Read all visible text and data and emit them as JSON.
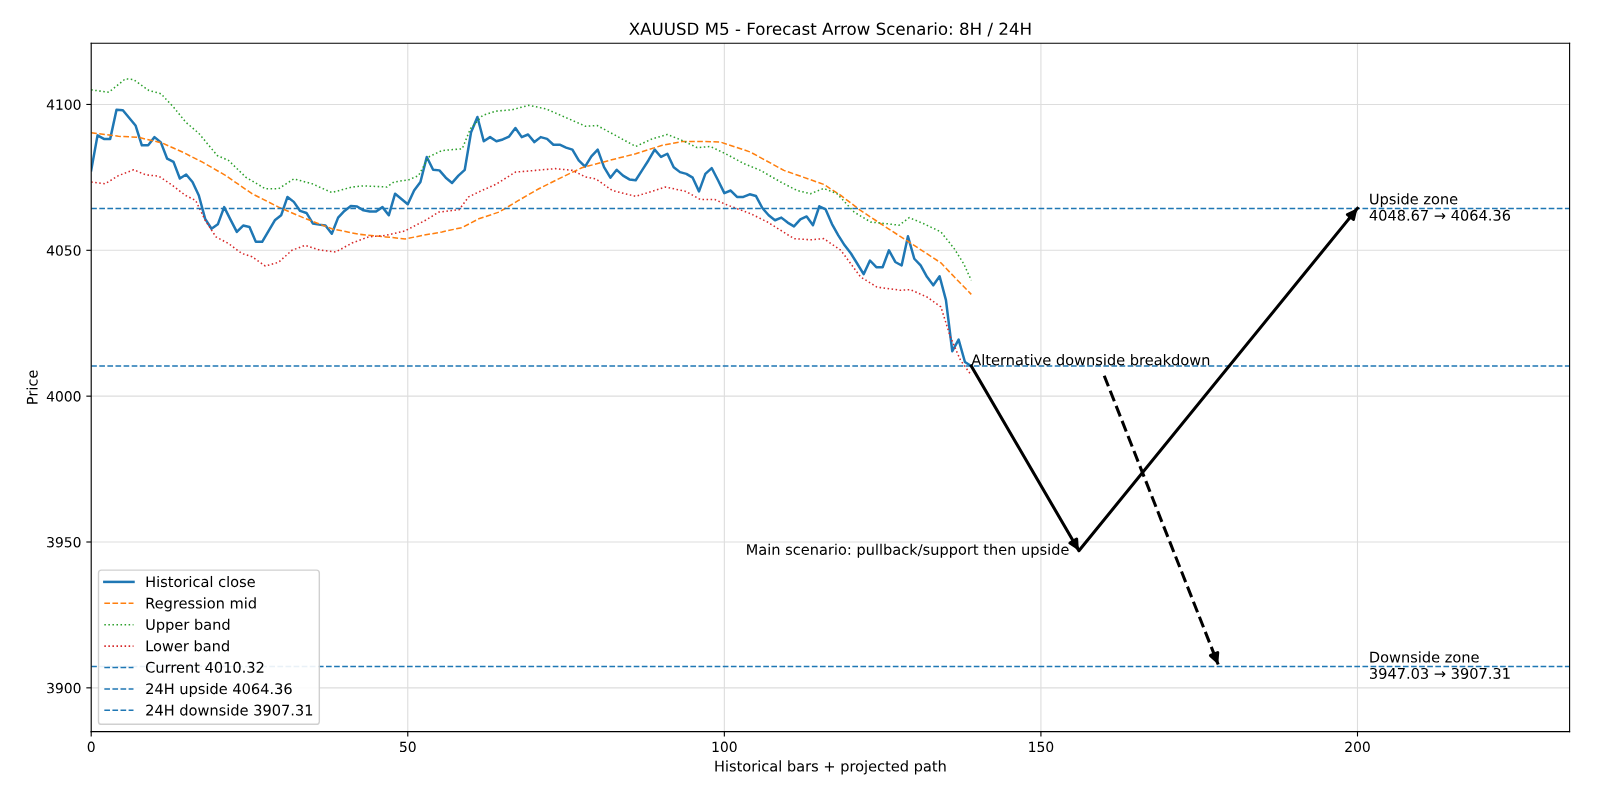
{
  "chart_data": {
    "type": "line",
    "title": "XAUUSD M5 - Forecast Arrow Scenario: 8H / 24H",
    "xlabel": "Historical bars + projected path",
    "ylabel": "Price",
    "xlim": [
      0,
      233.5
    ],
    "ylim": [
      3885,
      4121
    ],
    "xticks": [
      0,
      50,
      100,
      150,
      200
    ],
    "yticks": [
      3900,
      3950,
      4000,
      4050,
      4100
    ],
    "grid": true,
    "legend": "bottom left",
    "series": [
      {
        "name": "Historical close",
        "color": "#1f77b4",
        "line_style": "solid",
        "x": [
          0,
          1,
          2,
          3,
          4,
          5,
          7,
          8,
          9,
          10,
          11,
          12,
          13,
          14,
          15,
          16,
          17,
          18,
          19,
          20,
          21,
          22,
          23,
          24,
          25,
          26,
          27,
          29,
          30,
          31,
          32,
          33,
          34,
          35,
          36,
          37,
          38,
          39,
          40,
          41,
          42,
          43,
          44,
          45,
          46,
          47,
          48,
          50,
          51,
          52,
          53,
          54,
          55,
          56,
          57,
          58,
          59,
          60,
          61,
          62,
          63,
          64,
          65,
          66,
          67,
          68,
          69,
          70,
          71,
          72,
          73,
          74,
          75,
          76,
          77,
          78,
          79,
          80,
          81,
          82,
          83,
          84,
          85,
          86,
          87,
          88,
          89,
          90,
          91,
          92,
          93,
          94,
          95,
          96,
          97,
          98,
          99,
          100,
          101,
          102,
          103,
          104,
          105,
          106,
          107,
          108,
          109,
          110,
          111,
          112,
          113,
          114,
          115,
          116,
          117,
          118,
          119,
          120,
          121,
          122,
          123,
          124,
          125,
          126,
          127,
          128,
          129,
          130,
          131,
          132,
          133,
          134,
          135,
          136,
          137,
          138,
          139
        ],
        "values": [
          4077.4,
          4089.4,
          4088.2,
          4088.2,
          4098.2,
          4098,
          4092.8,
          4086,
          4086,
          4088.8,
          4087,
          4081.4,
          4080.3,
          4074.6,
          4076,
          4073.4,
          4068.8,
          4060.8,
          4057.4,
          4058.9,
          4064.8,
          4060.5,
          4056.3,
          4058.5,
          4058,
          4052.9,
          4052.9,
          4060.3,
          4062,
          4068.3,
          4066.6,
          4063.5,
          4062.8,
          4059.2,
          4058.8,
          4058.5,
          4055.7,
          4061.2,
          4063.5,
          4065.2,
          4065,
          4063.7,
          4063.3,
          4063.3,
          4064.8,
          4062,
          4069.4,
          4065.8,
          4070.5,
          4073.4,
          4082,
          4077.6,
          4077.4,
          4074.9,
          4073.1,
          4075.6,
          4077.6,
          4090.5,
          4095.7,
          4087.4,
          4088.8,
          4087.4,
          4088,
          4089,
          4091.9,
          4088.8,
          4089.7,
          4087.1,
          4088.8,
          4088.2,
          4086.2,
          4086.2,
          4085.2,
          4084.5,
          4080.8,
          4078.7,
          4082.2,
          4084.5,
          4078.5,
          4074.9,
          4077.6,
          4075.6,
          4074.3,
          4074,
          4077.4,
          4080.8,
          4084.5,
          4082,
          4083.1,
          4078.5,
          4076.8,
          4076.2,
          4074.9,
          4070.2,
          4076.2,
          4078.2,
          4074,
          4069.6,
          4070.5,
          4068.3,
          4068.3,
          4069.2,
          4068.6,
          4064.5,
          4062,
          4060.3,
          4061.2,
          4059.5,
          4058.2,
          4060.6,
          4061.6,
          4058.6,
          4065.1,
          4064,
          4059,
          4055.1,
          4051.7,
          4048.9,
          4045.4,
          4041.8,
          4046.5,
          4044.2,
          4044.2,
          4050,
          4046,
          4044.8,
          4054.8,
          4047.1,
          4044.8,
          4040.9,
          4038,
          4041.1,
          4032.9,
          4015.4,
          4019.4,
          4011.7,
          4010.3
        ]
      },
      {
        "name": "Regression mid",
        "color": "#ff7f0e",
        "line_style": "dashed",
        "x": [
          0,
          4.3,
          7.5,
          11.2,
          14.4,
          17.5,
          21.2,
          25.4,
          29.6,
          33.8,
          38,
          42.3,
          46.5,
          49.6,
          52.3,
          55.4,
          58.6,
          61.2,
          64.4,
          67.5,
          70.7,
          74.4,
          77.5,
          81.8,
          86,
          90.2,
          93.3,
          96.5,
          99.4,
          104.1,
          109.4,
          115.7,
          118.4,
          121.5,
          124.7,
          128.9,
          134.2,
          136.3,
          139
        ],
        "values": [
          4090.3,
          4089.1,
          4088.7,
          4086.8,
          4083.7,
          4080.3,
          4075.7,
          4069.4,
          4064.8,
          4060.9,
          4057.4,
          4055.5,
          4054.6,
          4053.9,
          4055.1,
          4056.3,
          4057.8,
          4060.8,
          4063.1,
          4067.1,
          4071.1,
          4075.1,
          4078.3,
          4080.8,
          4083.1,
          4086,
          4087.3,
          4087.3,
          4087.1,
          4083.7,
          4077.4,
          4072.6,
          4068.8,
          4063.7,
          4059.1,
          4053.2,
          4045.7,
          4040.9,
          4034.9
        ]
      },
      {
        "name": "Upper band",
        "color": "#2ca02c",
        "line_style": "dotted",
        "x": [
          0,
          2.8,
          5.4,
          6.7,
          9.1,
          11,
          13,
          14.9,
          17,
          19.9,
          21.7,
          24.4,
          27.5,
          29.6,
          32,
          34.9,
          38,
          41.2,
          43,
          46.7,
          47.8,
          50.2,
          51.7,
          53.3,
          55.4,
          58.6,
          59.9,
          61.8,
          63.9,
          66.5,
          69.1,
          71.8,
          75.4,
          78.1,
          79.9,
          82.8,
          86,
          88.6,
          91,
          93.3,
          95.7,
          97.8,
          100.2,
          103.1,
          105.7,
          108.9,
          111.5,
          113.6,
          115.7,
          117.8,
          120.5,
          123.1,
          125.7,
          127.6,
          129.2,
          131.5,
          134.2,
          136.3,
          137.8,
          139
        ],
        "values": [
          4105,
          4104.2,
          4108.8,
          4108.5,
          4104.8,
          4103.7,
          4099.1,
          4094,
          4090.1,
          4082.5,
          4080.8,
          4075.1,
          4071.1,
          4071.1,
          4074.5,
          4072.8,
          4069.8,
          4071.7,
          4072.1,
          4071.7,
          4073.4,
          4074.2,
          4075.6,
          4082,
          4084.2,
          4084.8,
          4091.7,
          4096.2,
          4097.7,
          4098.2,
          4099.7,
          4098.5,
          4095.1,
          4092.5,
          4092.8,
          4089.4,
          4085.6,
          4088.2,
          4089.7,
          4087.7,
          4085.2,
          4085.6,
          4083.1,
          4079.7,
          4077.4,
          4073.4,
          4070.5,
          4069.4,
          4071.2,
          4069.4,
          4063.1,
          4059.7,
          4059.1,
          4058.6,
          4061.2,
          4059.1,
          4056.3,
          4050.6,
          4045.4,
          4039.7
        ]
      },
      {
        "name": "Lower band",
        "color": "#d62728",
        "line_style": "dotted",
        "x": [
          0,
          2.2,
          4.3,
          6.7,
          8.6,
          10.7,
          12.8,
          14.9,
          16.5,
          18,
          19.7,
          21.7,
          23.8,
          25.4,
          27.5,
          29.6,
          31.7,
          33.8,
          35.9,
          38.6,
          41.2,
          43.8,
          46.5,
          49.5,
          52.8,
          54.9,
          58.1,
          59.6,
          61.7,
          63.9,
          67,
          70.2,
          73.3,
          76,
          78.1,
          79.7,
          82.3,
          86,
          88.1,
          90.7,
          93.9,
          96.2,
          98.5,
          100.5,
          104.1,
          106.8,
          111,
          113.6,
          115.7,
          118.4,
          121.5,
          124.1,
          127.8,
          129.4,
          132,
          134.2,
          135.7,
          137.3,
          139
        ],
        "values": [
          4073.4,
          4072.8,
          4075.6,
          4077.6,
          4075.9,
          4075.4,
          4072.3,
          4068.8,
          4067.1,
          4060.3,
          4054.6,
          4052.3,
          4048.9,
          4047.8,
          4044.6,
          4045.9,
          4050,
          4051.7,
          4050.2,
          4049.4,
          4052.5,
          4054.6,
          4055.1,
          4056.6,
          4060.3,
          4063.1,
          4063.9,
          4068.3,
          4070.5,
          4072.6,
          4076.8,
          4077.4,
          4078,
          4077.4,
          4075.1,
          4074.5,
          4070.5,
          4068.5,
          4069.9,
          4071.7,
          4070.2,
          4067.4,
          4067.4,
          4065.5,
          4062.6,
          4059.7,
          4054,
          4053.6,
          4054,
          4050,
          4040.9,
          4037.4,
          4036.3,
          4036.5,
          4034,
          4030.6,
          4020.3,
          4012.3,
          4007.2
        ]
      },
      {
        "color": "#000000",
        "line_style": "solid",
        "x": [
          139,
          156,
          200
        ],
        "values": [
          4010.3,
          3947,
          4064.4
        ]
      },
      {
        "color": "#000000",
        "line_style": "dashed",
        "x": [
          160,
          178
        ],
        "values": [
          4007,
          3908
        ]
      }
    ],
    "ref_lines": [
      {
        "axis": "y",
        "value": 4010.32,
        "label": "Current 4010.32",
        "color": "#1f77b4",
        "line_style": "dashed"
      },
      {
        "axis": "y",
        "value": 4064.36,
        "label": "24H upside 4064.36",
        "color": "#1f77b4",
        "line_style": "dashed"
      },
      {
        "axis": "y",
        "value": 3907.31,
        "label": "24H downside 3907.31",
        "color": "#1f77b4",
        "line_style": "dashed"
      }
    ],
    "annotations": [
      {
        "text": "Main scenario: pullback/support then upside",
        "x": 156,
        "y": 3947
      },
      {
        "text": "Alternative downside breakdown",
        "x": 139,
        "y": 4012
      },
      {
        "text": "Upside zone\n4048.67 → 4064.36",
        "x": 201.8,
        "y": 4064.36
      },
      {
        "text": "Downside zone\n3947.03 → 3907.31",
        "x": 201.8,
        "y": 3907.31
      }
    ]
  }
}
